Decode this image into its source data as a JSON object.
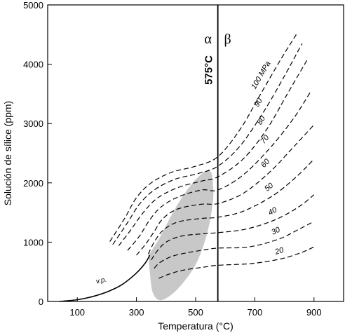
{
  "chart_data": {
    "type": "line",
    "xlabel": "Temperatura (°C)",
    "ylabel": "Solución de sílice (ppm)",
    "xlim": [
      0,
      1000
    ],
    "ylim": [
      0,
      5000
    ],
    "x_ticks": [
      100,
      300,
      500,
      700,
      900
    ],
    "y_ticks": [
      0,
      1000,
      2000,
      3000,
      4000,
      5000
    ],
    "grid": false,
    "phase_boundary": {
      "temperature": 575,
      "label": "575°C",
      "left_phase": "α",
      "right_phase": "β"
    },
    "vapor_pressure_label": "v.p.",
    "shaded_region_color": "#c8c8c8",
    "vapor_pressure_curve": [
      [
        40,
        0
      ],
      [
        100,
        30
      ],
      [
        150,
        80
      ],
      [
        200,
        160
      ],
      [
        250,
        280
      ],
      [
        300,
        480
      ],
      [
        330,
        650
      ],
      [
        345,
        780
      ]
    ],
    "series": [
      {
        "name": "100 MPa",
        "values": [
          [
            210,
            1010
          ],
          [
            260,
            1400
          ],
          [
            300,
            1750
          ],
          [
            350,
            2000
          ],
          [
            420,
            2180
          ],
          [
            500,
            2280
          ],
          [
            575,
            2440
          ],
          [
            650,
            2900
          ],
          [
            720,
            3500
          ],
          [
            790,
            4100
          ],
          [
            840,
            4500
          ]
        ]
      },
      {
        "name": "90",
        "values": [
          [
            220,
            960
          ],
          [
            270,
            1330
          ],
          [
            310,
            1640
          ],
          [
            360,
            1880
          ],
          [
            430,
            2060
          ],
          [
            510,
            2160
          ],
          [
            575,
            2280
          ],
          [
            650,
            2620
          ],
          [
            730,
            3200
          ],
          [
            800,
            3800
          ],
          [
            860,
            4350
          ]
        ]
      },
      {
        "name": "80",
        "values": [
          [
            240,
            940
          ],
          [
            280,
            1200
          ],
          [
            320,
            1480
          ],
          [
            370,
            1740
          ],
          [
            440,
            1920
          ],
          [
            520,
            2030
          ],
          [
            575,
            2100
          ],
          [
            660,
            2400
          ],
          [
            740,
            2900
          ],
          [
            810,
            3500
          ],
          [
            880,
            4100
          ]
        ]
      },
      {
        "name": "70",
        "values": [
          [
            270,
            860
          ],
          [
            310,
            1100
          ],
          [
            340,
            1340
          ],
          [
            380,
            1580
          ],
          [
            440,
            1760
          ],
          [
            520,
            1880
          ],
          [
            575,
            1880
          ],
          [
            660,
            2130
          ],
          [
            750,
            2580
          ],
          [
            830,
            3080
          ],
          [
            890,
            3550
          ]
        ]
      },
      {
        "name": "60",
        "values": [
          [
            300,
            780
          ],
          [
            330,
            960
          ],
          [
            360,
            1180
          ],
          [
            390,
            1400
          ],
          [
            440,
            1560
          ],
          [
            520,
            1640
          ],
          [
            575,
            1650
          ],
          [
            660,
            1820
          ],
          [
            750,
            2180
          ],
          [
            830,
            2600
          ],
          [
            900,
            2980
          ]
        ]
      },
      {
        "name": "50",
        "values": [
          [
            340,
            800
          ],
          [
            360,
            1000
          ],
          [
            390,
            1200
          ],
          [
            440,
            1340
          ],
          [
            520,
            1400
          ],
          [
            575,
            1420
          ],
          [
            660,
            1520
          ],
          [
            760,
            1780
          ],
          [
            840,
            2100
          ],
          [
            900,
            2400
          ]
        ]
      },
      {
        "name": "40",
        "values": [
          [
            350,
            700
          ],
          [
            370,
            850
          ],
          [
            400,
            1000
          ],
          [
            450,
            1100
          ],
          [
            520,
            1140
          ],
          [
            575,
            1160
          ],
          [
            670,
            1220
          ],
          [
            770,
            1380
          ],
          [
            850,
            1600
          ],
          [
            900,
            1800
          ]
        ]
      },
      {
        "name": "30",
        "values": [
          [
            360,
            560
          ],
          [
            380,
            660
          ],
          [
            420,
            760
          ],
          [
            470,
            820
          ],
          [
            530,
            870
          ],
          [
            575,
            900
          ],
          [
            680,
            920
          ],
          [
            780,
            1050
          ],
          [
            850,
            1220
          ],
          [
            900,
            1350
          ]
        ]
      },
      {
        "name": "20",
        "values": [
          [
            375,
            390
          ],
          [
            410,
            460
          ],
          [
            460,
            530
          ],
          [
            530,
            580
          ],
          [
            575,
            610
          ],
          [
            690,
            640
          ],
          [
            790,
            720
          ],
          [
            860,
            830
          ],
          [
            900,
            920
          ]
        ]
      }
    ]
  }
}
